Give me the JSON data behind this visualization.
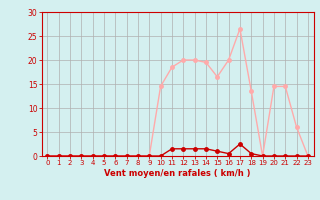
{
  "x_labels": [
    "0",
    "1",
    "2",
    "3",
    "4",
    "5",
    "6",
    "7",
    "8",
    "9",
    "10",
    "11",
    "12",
    "13",
    "14",
    "15",
    "16",
    "17",
    "18",
    "19",
    "20",
    "21",
    "22",
    "23"
  ],
  "x_values": [
    0,
    1,
    2,
    3,
    4,
    5,
    6,
    7,
    8,
    9,
    10,
    11,
    12,
    13,
    14,
    15,
    16,
    17,
    18,
    19,
    20,
    21,
    22,
    23
  ],
  "rafales": [
    0,
    0,
    0,
    0,
    0,
    0,
    0,
    0,
    0,
    0,
    14.5,
    18.5,
    20,
    20,
    19.5,
    16.5,
    20,
    26.5,
    13.5,
    0,
    14.5,
    14.5,
    6,
    0
  ],
  "moyen": [
    0,
    0,
    0,
    0,
    0,
    0,
    0,
    0,
    0,
    0,
    0,
    1.5,
    1.5,
    1.5,
    1.5,
    1,
    0.5,
    2.5,
    0.5,
    0,
    0,
    0,
    0,
    0
  ],
  "rafales_color": "#ffaaaa",
  "moyen_color": "#cc0000",
  "bg_color": "#d4f0f0",
  "grid_color": "#b0b0b0",
  "axis_color": "#cc0000",
  "tick_color": "#cc0000",
  "xlabel": "Vent moyen/en rafales ( km/h )",
  "ylim": [
    0,
    30
  ],
  "yticks": [
    0,
    5,
    10,
    15,
    20,
    25,
    30
  ],
  "xlim": [
    -0.5,
    23.5
  ],
  "marker": "o",
  "marker_size": 2.5,
  "linewidth": 1.0
}
